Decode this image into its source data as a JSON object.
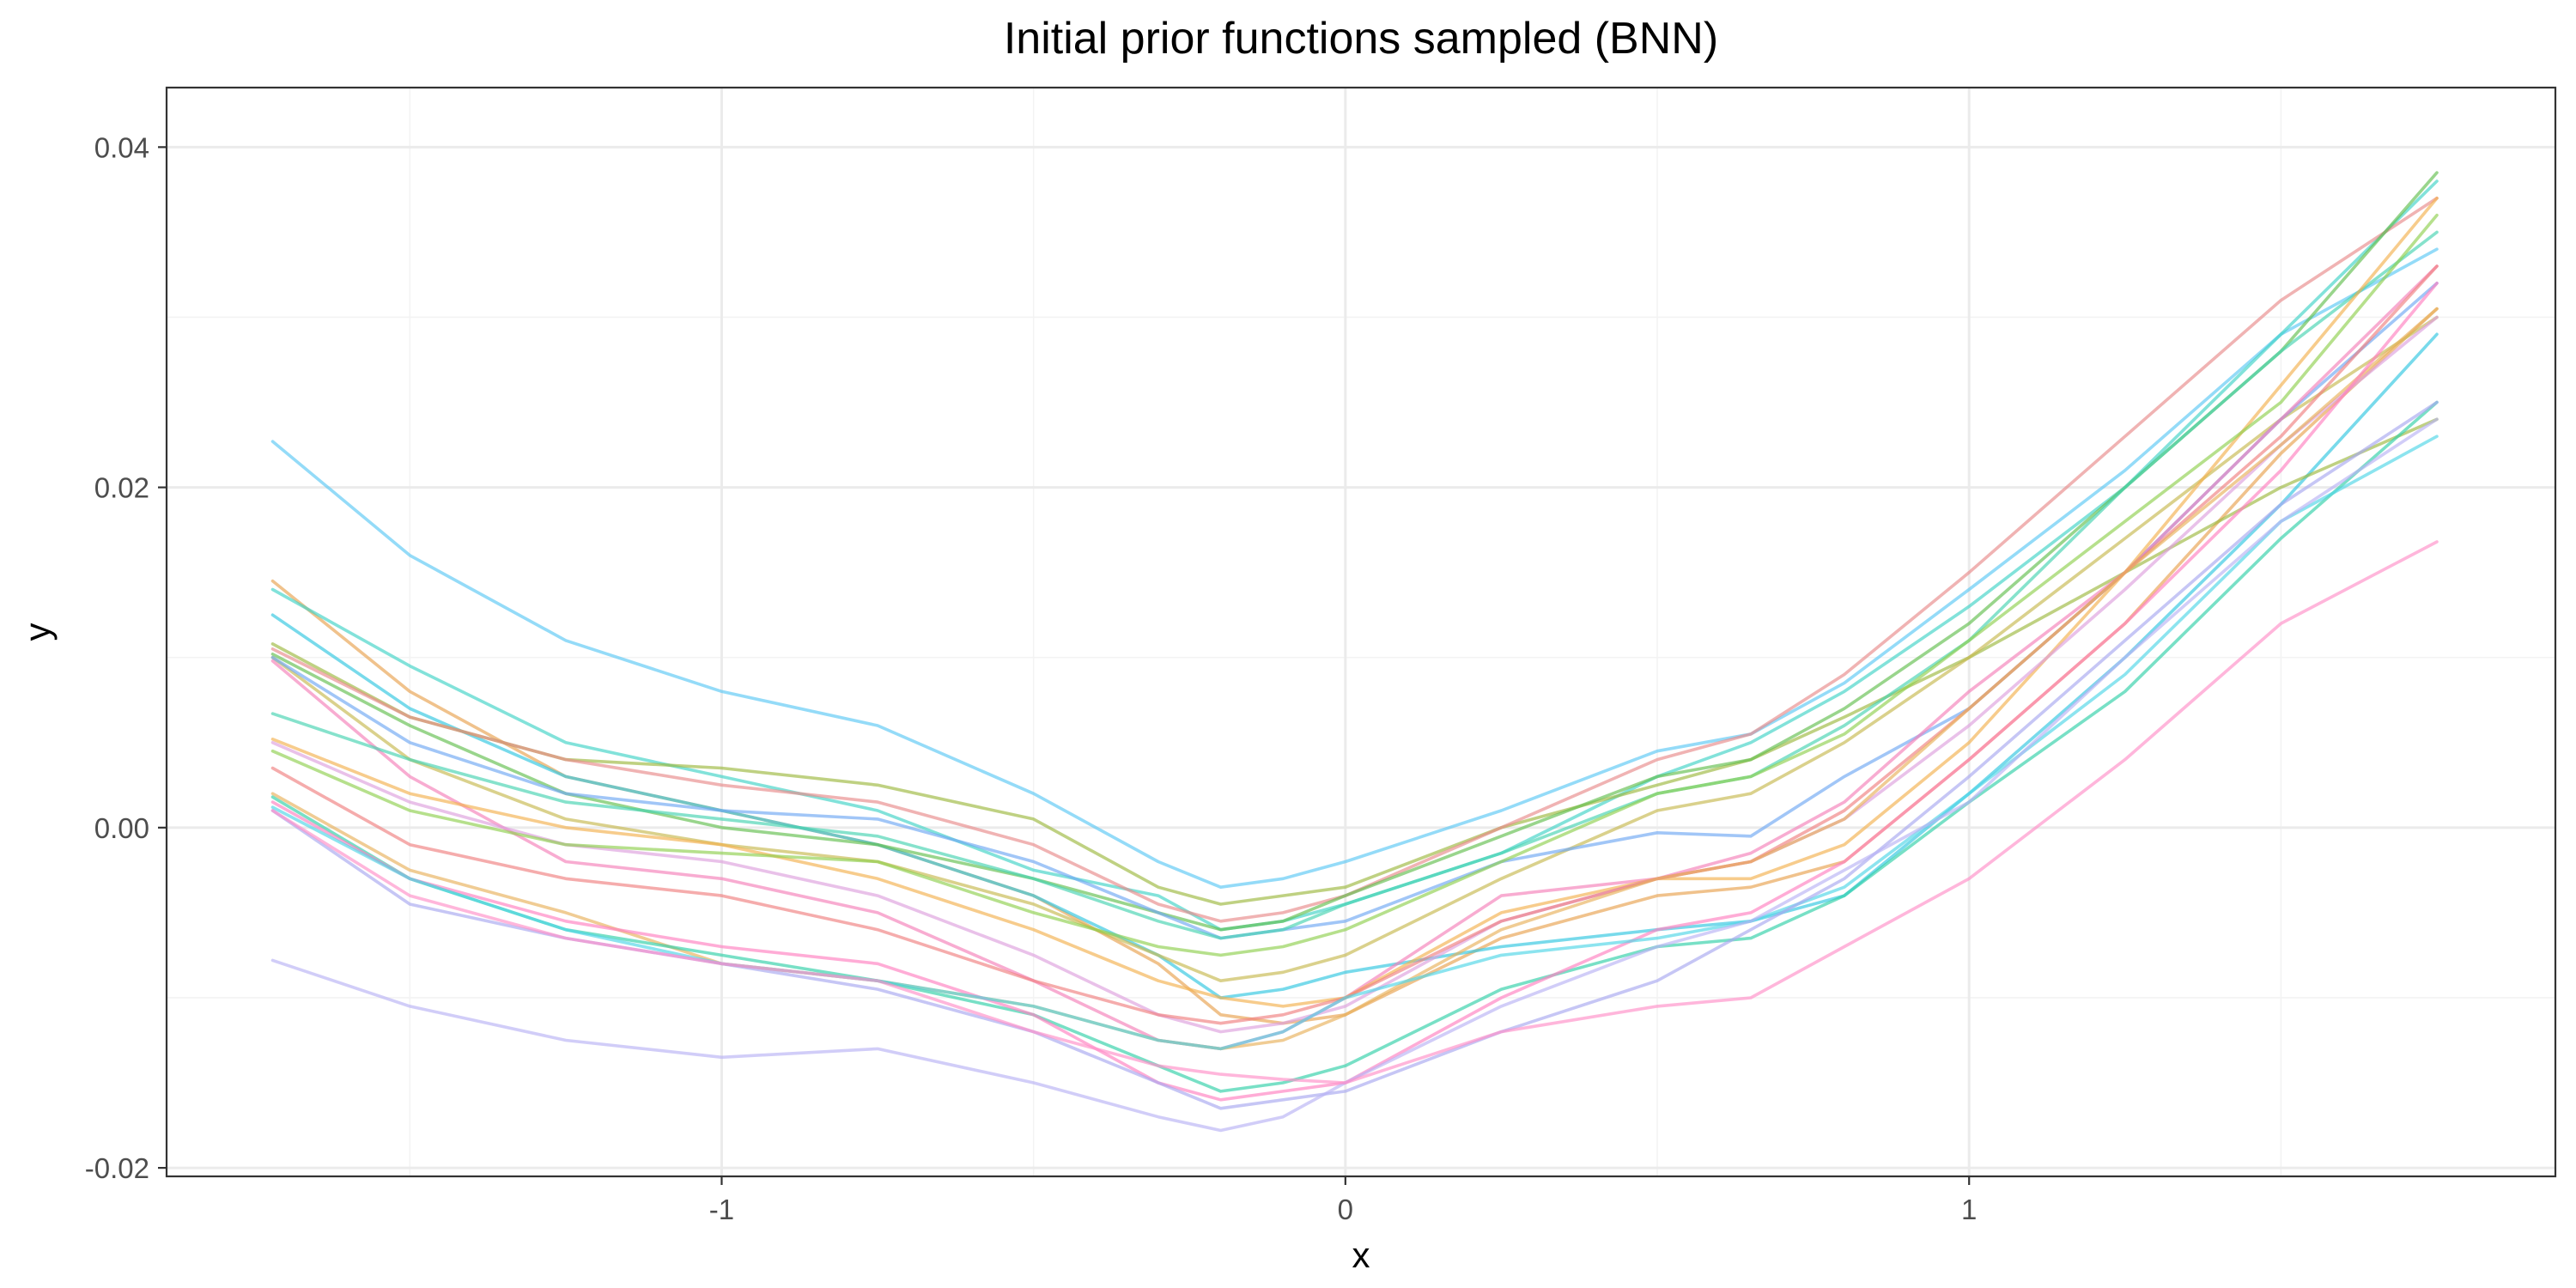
{
  "chart_data": {
    "type": "line",
    "title": "Initial prior functions sampled (BNN)",
    "xlabel": "x",
    "ylabel": "y",
    "xlim": [
      -1.89,
      1.94
    ],
    "ylim": [
      -0.0205,
      0.0435
    ],
    "x_ticks": [
      -1,
      0,
      1
    ],
    "x_tick_labels": [
      "-1",
      "0",
      "1"
    ],
    "y_ticks": [
      -0.02,
      0.0,
      0.02,
      0.04
    ],
    "y_tick_labels": [
      "-0.02",
      "0.00",
      "0.02",
      "0.04"
    ],
    "grid": true,
    "legend": "none",
    "x": [
      -1.72,
      -1.5,
      -1.25,
      -1.0,
      -0.75,
      -0.5,
      -0.3,
      -0.2,
      -0.1,
      0.0,
      0.25,
      0.5,
      0.65,
      0.8,
      1.0,
      1.25,
      1.5,
      1.75
    ],
    "series": [
      {
        "color": "#5BC8F5",
        "values": [
          0.0227,
          0.016,
          0.011,
          0.008,
          0.006,
          0.002,
          -0.002,
          -0.0035,
          -0.003,
          -0.002,
          0.001,
          0.0045,
          0.0055,
          0.0085,
          0.014,
          0.021,
          0.029,
          0.034
        ]
      },
      {
        "color": "#E8A14E",
        "values": [
          0.0145,
          0.008,
          0.003,
          0.001,
          -0.001,
          -0.004,
          -0.008,
          -0.011,
          -0.0115,
          -0.011,
          -0.0065,
          -0.004,
          -0.0035,
          -0.002,
          0.004,
          0.012,
          0.022,
          0.0305
        ]
      },
      {
        "color": "#3FD3C6",
        "values": [
          0.014,
          0.0095,
          0.005,
          0.003,
          0.001,
          -0.0025,
          -0.004,
          -0.006,
          -0.0055,
          -0.0045,
          -0.0015,
          0.003,
          0.005,
          0.008,
          0.013,
          0.02,
          0.029,
          0.038
        ]
      },
      {
        "color": "#2FC6E0",
        "values": [
          0.0125,
          0.007,
          0.003,
          0.001,
          -0.001,
          -0.004,
          -0.0075,
          -0.01,
          -0.0095,
          -0.0085,
          -0.007,
          -0.006,
          -0.0055,
          -0.004,
          0.002,
          0.01,
          0.019,
          0.029
        ]
      },
      {
        "color": "#9DB83F",
        "values": [
          0.0108,
          0.0065,
          0.004,
          0.0035,
          0.0025,
          0.0005,
          -0.0035,
          -0.0045,
          -0.004,
          -0.0035,
          0.0,
          0.0025,
          0.004,
          0.0065,
          0.01,
          0.015,
          0.02,
          0.024
        ]
      },
      {
        "color": "#E88B8B",
        "values": [
          0.0105,
          0.0065,
          0.004,
          0.0025,
          0.0015,
          -0.001,
          -0.0045,
          -0.0055,
          -0.005,
          -0.004,
          0.0,
          0.004,
          0.0055,
          0.009,
          0.015,
          0.023,
          0.031,
          0.037
        ]
      },
      {
        "color": "#63BF4E",
        "values": [
          0.0102,
          0.006,
          0.002,
          0.0,
          -0.001,
          -0.003,
          -0.005,
          -0.006,
          -0.0055,
          -0.004,
          -0.0005,
          0.003,
          0.004,
          0.007,
          0.012,
          0.02,
          0.028,
          0.0385
        ]
      },
      {
        "color": "#C6B84E",
        "values": [
          0.01,
          0.004,
          0.0005,
          -0.001,
          -0.002,
          -0.0045,
          -0.0075,
          -0.009,
          -0.0085,
          -0.0075,
          -0.003,
          0.001,
          0.002,
          0.005,
          0.01,
          0.017,
          0.024,
          0.03
        ]
      },
      {
        "color": "#6FA7F2",
        "values": [
          0.01,
          0.005,
          0.002,
          0.001,
          0.0005,
          -0.002,
          -0.005,
          -0.0065,
          -0.006,
          -0.0055,
          -0.002,
          -0.0003,
          -0.0005,
          0.003,
          0.007,
          0.015,
          0.024,
          0.032
        ]
      },
      {
        "color": "#F47FB8",
        "values": [
          0.0098,
          0.003,
          -0.002,
          -0.003,
          -0.005,
          -0.009,
          -0.0125,
          -0.013,
          -0.012,
          -0.01,
          -0.004,
          -0.003,
          -0.0015,
          0.0015,
          0.008,
          0.015,
          0.024,
          0.033
        ]
      },
      {
        "color": "#45D3B0",
        "values": [
          0.0067,
          0.004,
          0.0015,
          0.0005,
          -0.0005,
          -0.003,
          -0.0055,
          -0.0065,
          -0.006,
          -0.0045,
          -0.0015,
          0.002,
          0.003,
          0.006,
          0.011,
          0.02,
          0.028,
          0.035
        ]
      },
      {
        "color": "#F2B04E",
        "values": [
          0.0052,
          0.002,
          0.0,
          -0.001,
          -0.003,
          -0.006,
          -0.009,
          -0.01,
          -0.0105,
          -0.01,
          -0.005,
          -0.003,
          -0.003,
          -0.001,
          0.005,
          0.015,
          0.026,
          0.037
        ]
      },
      {
        "color": "#DDA0DD",
        "values": [
          0.005,
          0.0015,
          -0.001,
          -0.002,
          -0.004,
          -0.0075,
          -0.011,
          -0.012,
          -0.0115,
          -0.0105,
          -0.0055,
          -0.003,
          -0.002,
          0.0005,
          0.006,
          0.014,
          0.0225,
          0.03
        ]
      },
      {
        "color": "#8FCF4E",
        "values": [
          0.0045,
          0.001,
          -0.001,
          -0.0015,
          -0.002,
          -0.005,
          -0.007,
          -0.0075,
          -0.007,
          -0.006,
          -0.002,
          0.002,
          0.003,
          0.0055,
          0.011,
          0.018,
          0.025,
          0.036
        ]
      },
      {
        "color": "#F07F7F",
        "values": [
          0.0035,
          -0.001,
          -0.003,
          -0.004,
          -0.006,
          -0.009,
          -0.011,
          -0.0115,
          -0.011,
          -0.01,
          -0.0055,
          -0.003,
          -0.002,
          0.001,
          0.007,
          0.015,
          0.023,
          0.033
        ]
      },
      {
        "color": "#E8B05A",
        "values": [
          0.002,
          -0.0025,
          -0.005,
          -0.008,
          -0.009,
          -0.0105,
          -0.0125,
          -0.013,
          -0.0125,
          -0.011,
          -0.006,
          -0.003,
          -0.002,
          0.0005,
          0.007,
          0.015,
          0.0225,
          0.0305
        ]
      },
      {
        "color": "#2FCFA8",
        "values": [
          0.0018,
          -0.003,
          -0.006,
          -0.0075,
          -0.009,
          -0.011,
          -0.014,
          -0.0155,
          -0.015,
          -0.014,
          -0.0095,
          -0.007,
          -0.0065,
          -0.004,
          0.0015,
          0.008,
          0.017,
          0.025
        ]
      },
      {
        "color": "#FF7FC0",
        "values": [
          0.0015,
          -0.003,
          -0.0055,
          -0.007,
          -0.008,
          -0.011,
          -0.015,
          -0.016,
          -0.0155,
          -0.015,
          -0.01,
          -0.006,
          -0.005,
          -0.002,
          0.004,
          0.012,
          0.021,
          0.032
        ]
      },
      {
        "color": "#4FD6E6",
        "values": [
          0.0012,
          -0.003,
          -0.006,
          -0.008,
          -0.009,
          -0.0105,
          -0.0125,
          -0.013,
          -0.012,
          -0.01,
          -0.0075,
          -0.0065,
          -0.0055,
          -0.0035,
          0.002,
          0.009,
          0.018,
          0.023
        ]
      },
      {
        "color": "#A8A8F0",
        "values": [
          0.001,
          -0.0045,
          -0.0065,
          -0.008,
          -0.0095,
          -0.012,
          -0.015,
          -0.0165,
          -0.016,
          -0.0155,
          -0.012,
          -0.009,
          -0.006,
          -0.003,
          0.003,
          0.011,
          0.019,
          0.025
        ]
      },
      {
        "color": "#B9B2F5",
        "values": [
          -0.0078,
          -0.0105,
          -0.0125,
          -0.0135,
          -0.013,
          -0.015,
          -0.017,
          -0.0178,
          -0.017,
          -0.015,
          -0.0105,
          -0.007,
          -0.0055,
          -0.0025,
          0.0015,
          0.01,
          0.018,
          0.024
        ]
      },
      {
        "color": "#FF8FC8",
        "values": [
          0.001,
          -0.004,
          -0.0065,
          -0.008,
          -0.009,
          -0.012,
          -0.014,
          -0.0145,
          -0.0148,
          -0.015,
          -0.012,
          -0.0105,
          -0.01,
          -0.007,
          -0.003,
          0.004,
          0.012,
          0.0168
        ]
      }
    ]
  }
}
